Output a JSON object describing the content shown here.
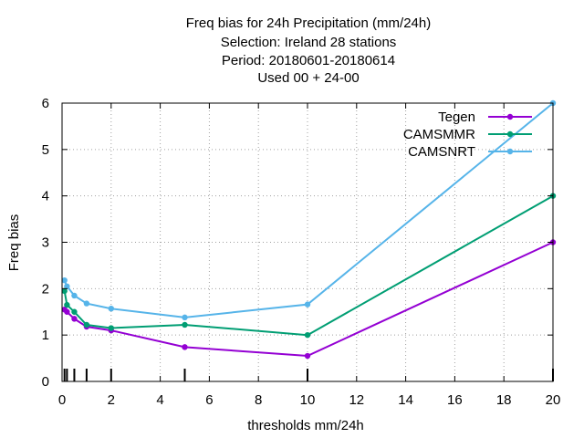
{
  "chart_data": {
    "type": "line",
    "title_lines": [
      "Freq bias  for 24h Precipitation (mm/24h)",
      "Selection: Ireland     28 stations",
      "Period: 20180601-20180614",
      "Used  00 + 24-00"
    ],
    "xlabel": "thresholds mm/24h",
    "ylabel": "Freq bias",
    "xlim": [
      0,
      20
    ],
    "ylim": [
      0,
      6
    ],
    "xticks": [
      0,
      2,
      4,
      6,
      8,
      10,
      12,
      14,
      16,
      18,
      20
    ],
    "yticks": [
      0,
      1,
      2,
      3,
      4,
      5,
      6
    ],
    "grid": true,
    "legend_position": "top-right",
    "threshold_markers": [
      0.1,
      0.2,
      0.5,
      1,
      2,
      5,
      10,
      20
    ],
    "series": [
      {
        "name": "Tegen",
        "color": "#9400d3",
        "x": [
          0.1,
          0.2,
          0.5,
          1,
          2,
          5,
          10,
          20
        ],
        "y": [
          1.55,
          1.5,
          1.35,
          1.18,
          1.1,
          0.74,
          0.55,
          3.0
        ]
      },
      {
        "name": "CAMSMMR",
        "color": "#009e73",
        "x": [
          0.1,
          0.2,
          0.5,
          1,
          2,
          5,
          10,
          20
        ],
        "y": [
          1.95,
          1.65,
          1.5,
          1.22,
          1.15,
          1.22,
          1.0,
          4.0
        ]
      },
      {
        "name": "CAMSNRT",
        "color": "#56b4e9",
        "x": [
          0.1,
          0.2,
          0.5,
          1,
          2,
          5,
          10,
          20
        ],
        "y": [
          2.18,
          2.05,
          1.85,
          1.68,
          1.57,
          1.38,
          1.66,
          6.0
        ]
      }
    ]
  }
}
